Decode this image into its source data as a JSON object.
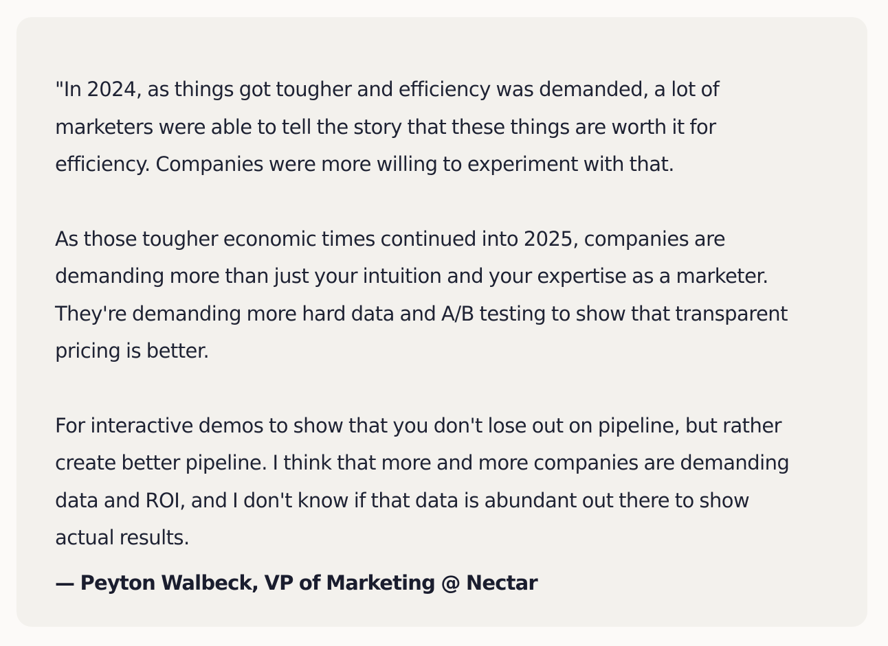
{
  "quote": {
    "paragraphs": [
      "\"In 2024, as things got tougher and efficiency was demanded, a lot of\nmarketers were able to tell the story that these things are worth it for\nefficiency. Companies were more willing to experiment with that.",
      "As those tougher economic times continued into 2025, companies are\ndemanding more than just your intuition and your expertise as a marketer.\nThey're demanding more hard data and A/B testing to show that transparent\npricing is better.",
      "For interactive demos to show that you don't lose out on pipeline, but rather\ncreate better pipeline. I think that more and more companies are demanding\ndata and ROI, and I don't know if that data is abundant out there to show\nactual results."
    ],
    "attribution": "— Peyton Walbeck, VP of Marketing @ Nectar"
  },
  "colors": {
    "page_background": "#fcfaf8",
    "card_background": "#f3f1ed",
    "text": "#1e2233"
  }
}
